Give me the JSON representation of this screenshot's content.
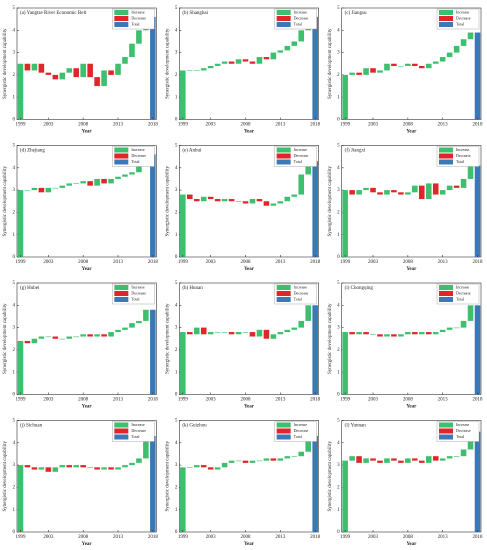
{
  "chart_data": [
    {
      "type": "waterfall",
      "title": "(a) Yangtze River Economic Belt",
      "xlabel": "Year",
      "ylabel": "Synergistic development capability",
      "categories": [
        "1999",
        null,
        null,
        null,
        "2003",
        null,
        null,
        null,
        null,
        "2008",
        null,
        null,
        null,
        null,
        "2013",
        null,
        null,
        null,
        null,
        "2018"
      ],
      "values": [
        2.5,
        -0.3,
        0.3,
        -0.4,
        -0.1,
        -0.2,
        0.3,
        0.2,
        -0.4,
        0.6,
        -0.6,
        -0.4,
        0.7,
        -0.2,
        0.5,
        0.3,
        0.6,
        0.6,
        0.6,
        4.6
      ],
      "ylim": [
        0,
        5
      ],
      "yticks": [
        0,
        1,
        2,
        3,
        4,
        5
      ],
      "legend": [
        {
          "name": "Increase",
          "color": "#3dbf6e"
        },
        {
          "name": "Decrease",
          "color": "#e0262a"
        },
        {
          "name": "Total",
          "color": "#3a78b8"
        }
      ]
    },
    {
      "type": "waterfall",
      "title": "(b) Shanghai",
      "xlabel": "Year",
      "ylabel": "Synergistic development capability",
      "categories": [
        "1999",
        null,
        null,
        null,
        "2003",
        null,
        null,
        null,
        null,
        "2008",
        null,
        null,
        null,
        null,
        "2013",
        null,
        null,
        null,
        null,
        "2018"
      ],
      "values": [
        2.2,
        0,
        0,
        0.1,
        0.1,
        0.1,
        0.1,
        -0.1,
        0.2,
        -0.1,
        -0.1,
        0.3,
        -0.1,
        0.3,
        0.1,
        0.2,
        0.2,
        0.5,
        0.6,
        4.6
      ],
      "ylim": [
        0,
        5
      ],
      "yticks": [
        0,
        1,
        2,
        3,
        4,
        5
      ],
      "legend": [
        {
          "name": "Increase",
          "color": "#3dbf6e"
        },
        {
          "name": "Decrease",
          "color": "#e0262a"
        },
        {
          "name": "Total",
          "color": "#3a78b8"
        }
      ]
    },
    {
      "type": "waterfall",
      "title": "(c) Jiangsu",
      "xlabel": "Year",
      "ylabel": "Synergistic development capability",
      "categories": [
        "1999",
        null,
        null,
        null,
        "2003",
        null,
        null,
        null,
        null,
        "2008",
        null,
        null,
        null,
        null,
        "2013",
        null,
        null,
        null,
        null,
        "2018"
      ],
      "values": [
        2.0,
        0.1,
        -0.1,
        0.3,
        -0.2,
        0.1,
        0.3,
        -0.1,
        0,
        0.1,
        -0.1,
        -0.1,
        0.2,
        0.1,
        0.2,
        0.2,
        0.3,
        0.3,
        0.3,
        3.9
      ],
      "ylim": [
        0,
        5
      ],
      "yticks": [
        0,
        1,
        2,
        3,
        4,
        5
      ],
      "legend": [
        {
          "name": "Increase",
          "color": "#3dbf6e"
        },
        {
          "name": "Decrease",
          "color": "#e0262a"
        },
        {
          "name": "Total",
          "color": "#3a78b8"
        }
      ]
    },
    {
      "type": "waterfall",
      "title": "(d) Zhejiang",
      "xlabel": "Year",
      "ylabel": "Synergistic development capability",
      "categories": [
        "1999",
        null,
        null,
        null,
        "2003",
        null,
        null,
        null,
        null,
        "2008",
        null,
        null,
        null,
        null,
        "2013",
        null,
        null,
        null,
        null,
        "2018"
      ],
      "values": [
        3.0,
        0,
        0.1,
        -0.2,
        0.2,
        0,
        0.1,
        0.1,
        0,
        0.1,
        -0.2,
        0.3,
        -0.2,
        0.2,
        0.1,
        0.1,
        0.1,
        0.4,
        0.4,
        4.6
      ],
      "ylim": [
        0,
        5
      ],
      "yticks": [
        0,
        1,
        2,
        3,
        4,
        5
      ],
      "legend": [
        {
          "name": "Increase",
          "color": "#3dbf6e"
        },
        {
          "name": "Decrease",
          "color": "#e0262a"
        },
        {
          "name": "Total",
          "color": "#3a78b8"
        }
      ]
    },
    {
      "type": "waterfall",
      "title": "(e) Anhui",
      "xlabel": "Year",
      "ylabel": "Synergistic development capability",
      "categories": [
        "1999",
        null,
        null,
        null,
        "2003",
        null,
        null,
        null,
        null,
        "2008",
        null,
        null,
        null,
        null,
        "2013",
        null,
        null,
        null,
        null,
        "2018"
      ],
      "values": [
        2.8,
        -0.2,
        -0.1,
        0.2,
        -0.1,
        -0.1,
        0.1,
        -0.1,
        0,
        -0.1,
        0.2,
        -0.1,
        -0.2,
        0.1,
        0.1,
        0.2,
        0.1,
        0.9,
        0.6,
        4.3
      ],
      "ylim": [
        0,
        5
      ],
      "yticks": [
        0,
        1,
        2,
        3,
        4,
        5
      ],
      "legend": [
        {
          "name": "Increase",
          "color": "#3dbf6e"
        },
        {
          "name": "Decrease",
          "color": "#e0262a"
        },
        {
          "name": "Total",
          "color": "#3a78b8"
        }
      ]
    },
    {
      "type": "waterfall",
      "title": "(f) Jiangxi",
      "xlabel": "Year",
      "ylabel": "Synergistic development capability",
      "categories": [
        "1999",
        null,
        null,
        null,
        "2003",
        null,
        null,
        null,
        null,
        "2008",
        null,
        null,
        null,
        null,
        "2013",
        null,
        null,
        null,
        null,
        "2018"
      ],
      "values": [
        3.0,
        -0.2,
        0.2,
        0.1,
        -0.2,
        -0.1,
        0.2,
        -0.1,
        -0.1,
        0.1,
        0.3,
        -0.6,
        0.7,
        -0.5,
        0.2,
        0.2,
        -0.1,
        0.4,
        0.6,
        4.1
      ],
      "ylim": [
        0,
        5
      ],
      "yticks": [
        0,
        1,
        2,
        3,
        4,
        5
      ],
      "legend": [
        {
          "name": "Increase",
          "color": "#3dbf6e"
        },
        {
          "name": "Decrease",
          "color": "#e0262a"
        },
        {
          "name": "Total",
          "color": "#3a78b8"
        }
      ]
    },
    {
      "type": "waterfall",
      "title": "(g) Hubei",
      "xlabel": "Year",
      "ylabel": "Synergistic development capability",
      "categories": [
        "1999",
        null,
        null,
        null,
        "2003",
        null,
        null,
        null,
        null,
        "2008",
        null,
        null,
        null,
        null,
        "2013",
        null,
        null,
        null,
        null,
        "2018"
      ],
      "values": [
        2.4,
        -0.1,
        0.2,
        0.1,
        0,
        -0.1,
        0,
        0.1,
        0,
        0.1,
        -0.1,
        0.1,
        -0.1,
        0.2,
        0.1,
        0.1,
        0.2,
        0.1,
        0.5,
        3.8
      ],
      "ylim": [
        0,
        5
      ],
      "yticks": [
        0,
        1,
        2,
        3,
        4,
        5
      ],
      "legend": [
        {
          "name": "Increase",
          "color": "#3dbf6e"
        },
        {
          "name": "Decrease",
          "color": "#e0262a"
        },
        {
          "name": "Total",
          "color": "#3a78b8"
        }
      ]
    },
    {
      "type": "waterfall",
      "title": "(h) Hunan",
      "xlabel": "Year",
      "ylabel": "Synergistic development capability",
      "categories": [
        "1999",
        null,
        null,
        null,
        "2003",
        null,
        null,
        null,
        null,
        "2008",
        null,
        null,
        null,
        null,
        "2013",
        null,
        null,
        null,
        null,
        "2018"
      ],
      "values": [
        2.8,
        -0.1,
        0.3,
        -0.3,
        0.1,
        0,
        0,
        -0.1,
        0.1,
        0,
        -0.2,
        0.3,
        -0.4,
        0.2,
        0.1,
        0.1,
        0.1,
        0.3,
        0.7,
        4.0
      ],
      "ylim": [
        0,
        5
      ],
      "yticks": [
        0,
        1,
        2,
        3,
        4,
        5
      ],
      "legend": [
        {
          "name": "Increase",
          "color": "#3dbf6e"
        },
        {
          "name": "Decrease",
          "color": "#e0262a"
        },
        {
          "name": "Total",
          "color": "#3a78b8"
        }
      ]
    },
    {
      "type": "waterfall",
      "title": "(i) Chongqing",
      "xlabel": "Year",
      "ylabel": "Synergistic development capability",
      "categories": [
        "1999",
        null,
        null,
        null,
        "2003",
        null,
        null,
        null,
        null,
        "2008",
        null,
        null,
        null,
        null,
        "2013",
        null,
        null,
        null,
        null,
        "2018"
      ],
      "values": [
        2.8,
        -0.1,
        0.1,
        -0.1,
        0,
        -0.1,
        0.1,
        -0.1,
        0.1,
        0.1,
        -0.1,
        0.1,
        -0.1,
        0.1,
        0.1,
        0.1,
        0,
        0.3,
        0.7,
        4.0
      ],
      "ylim": [
        0,
        5
      ],
      "yticks": [
        0,
        1,
        2,
        3,
        4,
        5
      ],
      "legend": [
        {
          "name": "Increase",
          "color": "#3dbf6e"
        },
        {
          "name": "Decrease",
          "color": "#e0262a"
        },
        {
          "name": "Total",
          "color": "#3a78b8"
        }
      ]
    },
    {
      "type": "waterfall",
      "title": "(j) Sichuan",
      "xlabel": "Year",
      "ylabel": "Synergistic development capability",
      "categories": [
        "1999",
        null,
        null,
        null,
        "2003",
        null,
        null,
        null,
        null,
        "2008",
        null,
        null,
        null,
        null,
        "2013",
        null,
        null,
        null,
        null,
        "2018"
      ],
      "values": [
        3.0,
        -0.1,
        -0.1,
        0.1,
        -0.2,
        0.2,
        0.1,
        -0.1,
        0.1,
        -0.1,
        0,
        -0.1,
        0.1,
        -0.1,
        0.1,
        0.1,
        0.1,
        0.2,
        1.0,
        4.3
      ],
      "ylim": [
        0,
        5
      ],
      "yticks": [
        0,
        1,
        2,
        3,
        4,
        5
      ],
      "legend": [
        {
          "name": "Increase",
          "color": "#3dbf6e"
        },
        {
          "name": "Decrease",
          "color": "#e0262a"
        },
        {
          "name": "Total",
          "color": "#3a78b8"
        }
      ]
    },
    {
      "type": "waterfall",
      "title": "(k) Guizhou",
      "xlabel": "Year",
      "ylabel": "Synergistic development capability",
      "categories": [
        "1999",
        null,
        null,
        null,
        "2003",
        null,
        null,
        null,
        null,
        "2008",
        null,
        null,
        null,
        null,
        "2013",
        null,
        null,
        null,
        null,
        "2018"
      ],
      "values": [
        2.9,
        0,
        0.1,
        -0.1,
        -0.1,
        0.1,
        0.2,
        0.1,
        0,
        -0.1,
        0.1,
        0,
        0.1,
        -0.1,
        0.1,
        0.1,
        0,
        0.2,
        0.7,
        4.3
      ],
      "ylim": [
        0,
        5
      ],
      "yticks": [
        0,
        1,
        2,
        3,
        4,
        5
      ],
      "legend": [
        {
          "name": "Increase",
          "color": "#3dbf6e"
        },
        {
          "name": "Decrease",
          "color": "#e0262a"
        },
        {
          "name": "Total",
          "color": "#3a78b8"
        }
      ]
    },
    {
      "type": "waterfall",
      "title": "(l) Yunnan",
      "xlabel": "Year",
      "ylabel": "Synergistic development capability",
      "categories": [
        "1999",
        null,
        null,
        null,
        "2003",
        null,
        null,
        null,
        null,
        "2008",
        null,
        null,
        null,
        null,
        "2013",
        null,
        null,
        null,
        null,
        "2018"
      ],
      "values": [
        3.2,
        0.2,
        -0.3,
        0.2,
        -0.1,
        -0.1,
        0.2,
        -0.1,
        -0.1,
        0.2,
        -0.1,
        -0.1,
        0.3,
        -0.2,
        0.1,
        0.1,
        0,
        0.3,
        0.8,
        4.5
      ],
      "ylim": [
        0,
        5
      ],
      "yticks": [
        0,
        1,
        2,
        3,
        4,
        5
      ],
      "legend": [
        {
          "name": "Increase",
          "color": "#3dbf6e"
        },
        {
          "name": "Decrease",
          "color": "#e0262a"
        },
        {
          "name": "Total",
          "color": "#3a78b8"
        }
      ]
    }
  ]
}
